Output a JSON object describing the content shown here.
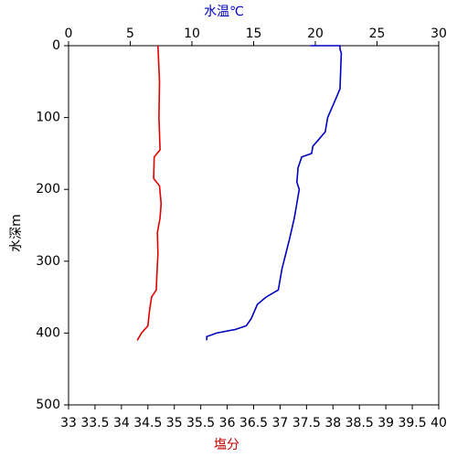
{
  "chart_data": {
    "type": "line",
    "x_label": "塩分",
    "x2_label": "水温℃",
    "y_label": "水深m",
    "xlim": [
      33,
      40
    ],
    "xticks": [
      33,
      33.5,
      34,
      34.5,
      35,
      35.5,
      36,
      36.5,
      37,
      37.5,
      38,
      38.5,
      39,
      39.5,
      40
    ],
    "x2lim": [
      0,
      30
    ],
    "x2ticks": [
      0,
      5,
      10,
      15,
      20,
      25,
      30
    ],
    "ylim": [
      0,
      500
    ],
    "yticks": [
      0,
      100,
      200,
      300,
      400,
      500
    ],
    "y_inverted": true,
    "x_label_color": "#c00000",
    "x2_label_color": "#0000c0",
    "series": [
      {
        "color": "#0000c0",
        "axis": "x2",
        "values": [
          19.6,
          22.0,
          22.0,
          22.1,
          22.0,
          21.5,
          21.0,
          20.8,
          20.3,
          19.8,
          19.7,
          18.9,
          18.6,
          18.5,
          18.7,
          18.3,
          17.9,
          17.6,
          17.3,
          17.0,
          16.0,
          15.3,
          14.8,
          14.4,
          13.5,
          12.0,
          11.2,
          11.2
        ],
        "depth": [
          0,
          0,
          5,
          10,
          60,
          80,
          100,
          120,
          130,
          140,
          150,
          155,
          170,
          190,
          200,
          240,
          270,
          290,
          310,
          340,
          350,
          360,
          380,
          390,
          395,
          400,
          405,
          410
        ]
      },
      {
        "color": "#e00000",
        "axis": "x",
        "values": [
          34.69,
          34.72,
          34.71,
          34.73,
          34.62,
          34.61,
          34.72,
          34.75,
          34.73,
          34.68,
          34.69,
          34.67,
          34.66,
          34.57,
          34.53,
          34.5,
          34.38,
          34.3
        ],
        "depth": [
          0,
          50,
          100,
          145,
          155,
          185,
          195,
          220,
          240,
          260,
          290,
          320,
          340,
          350,
          370,
          390,
          400,
          410
        ]
      }
    ]
  }
}
